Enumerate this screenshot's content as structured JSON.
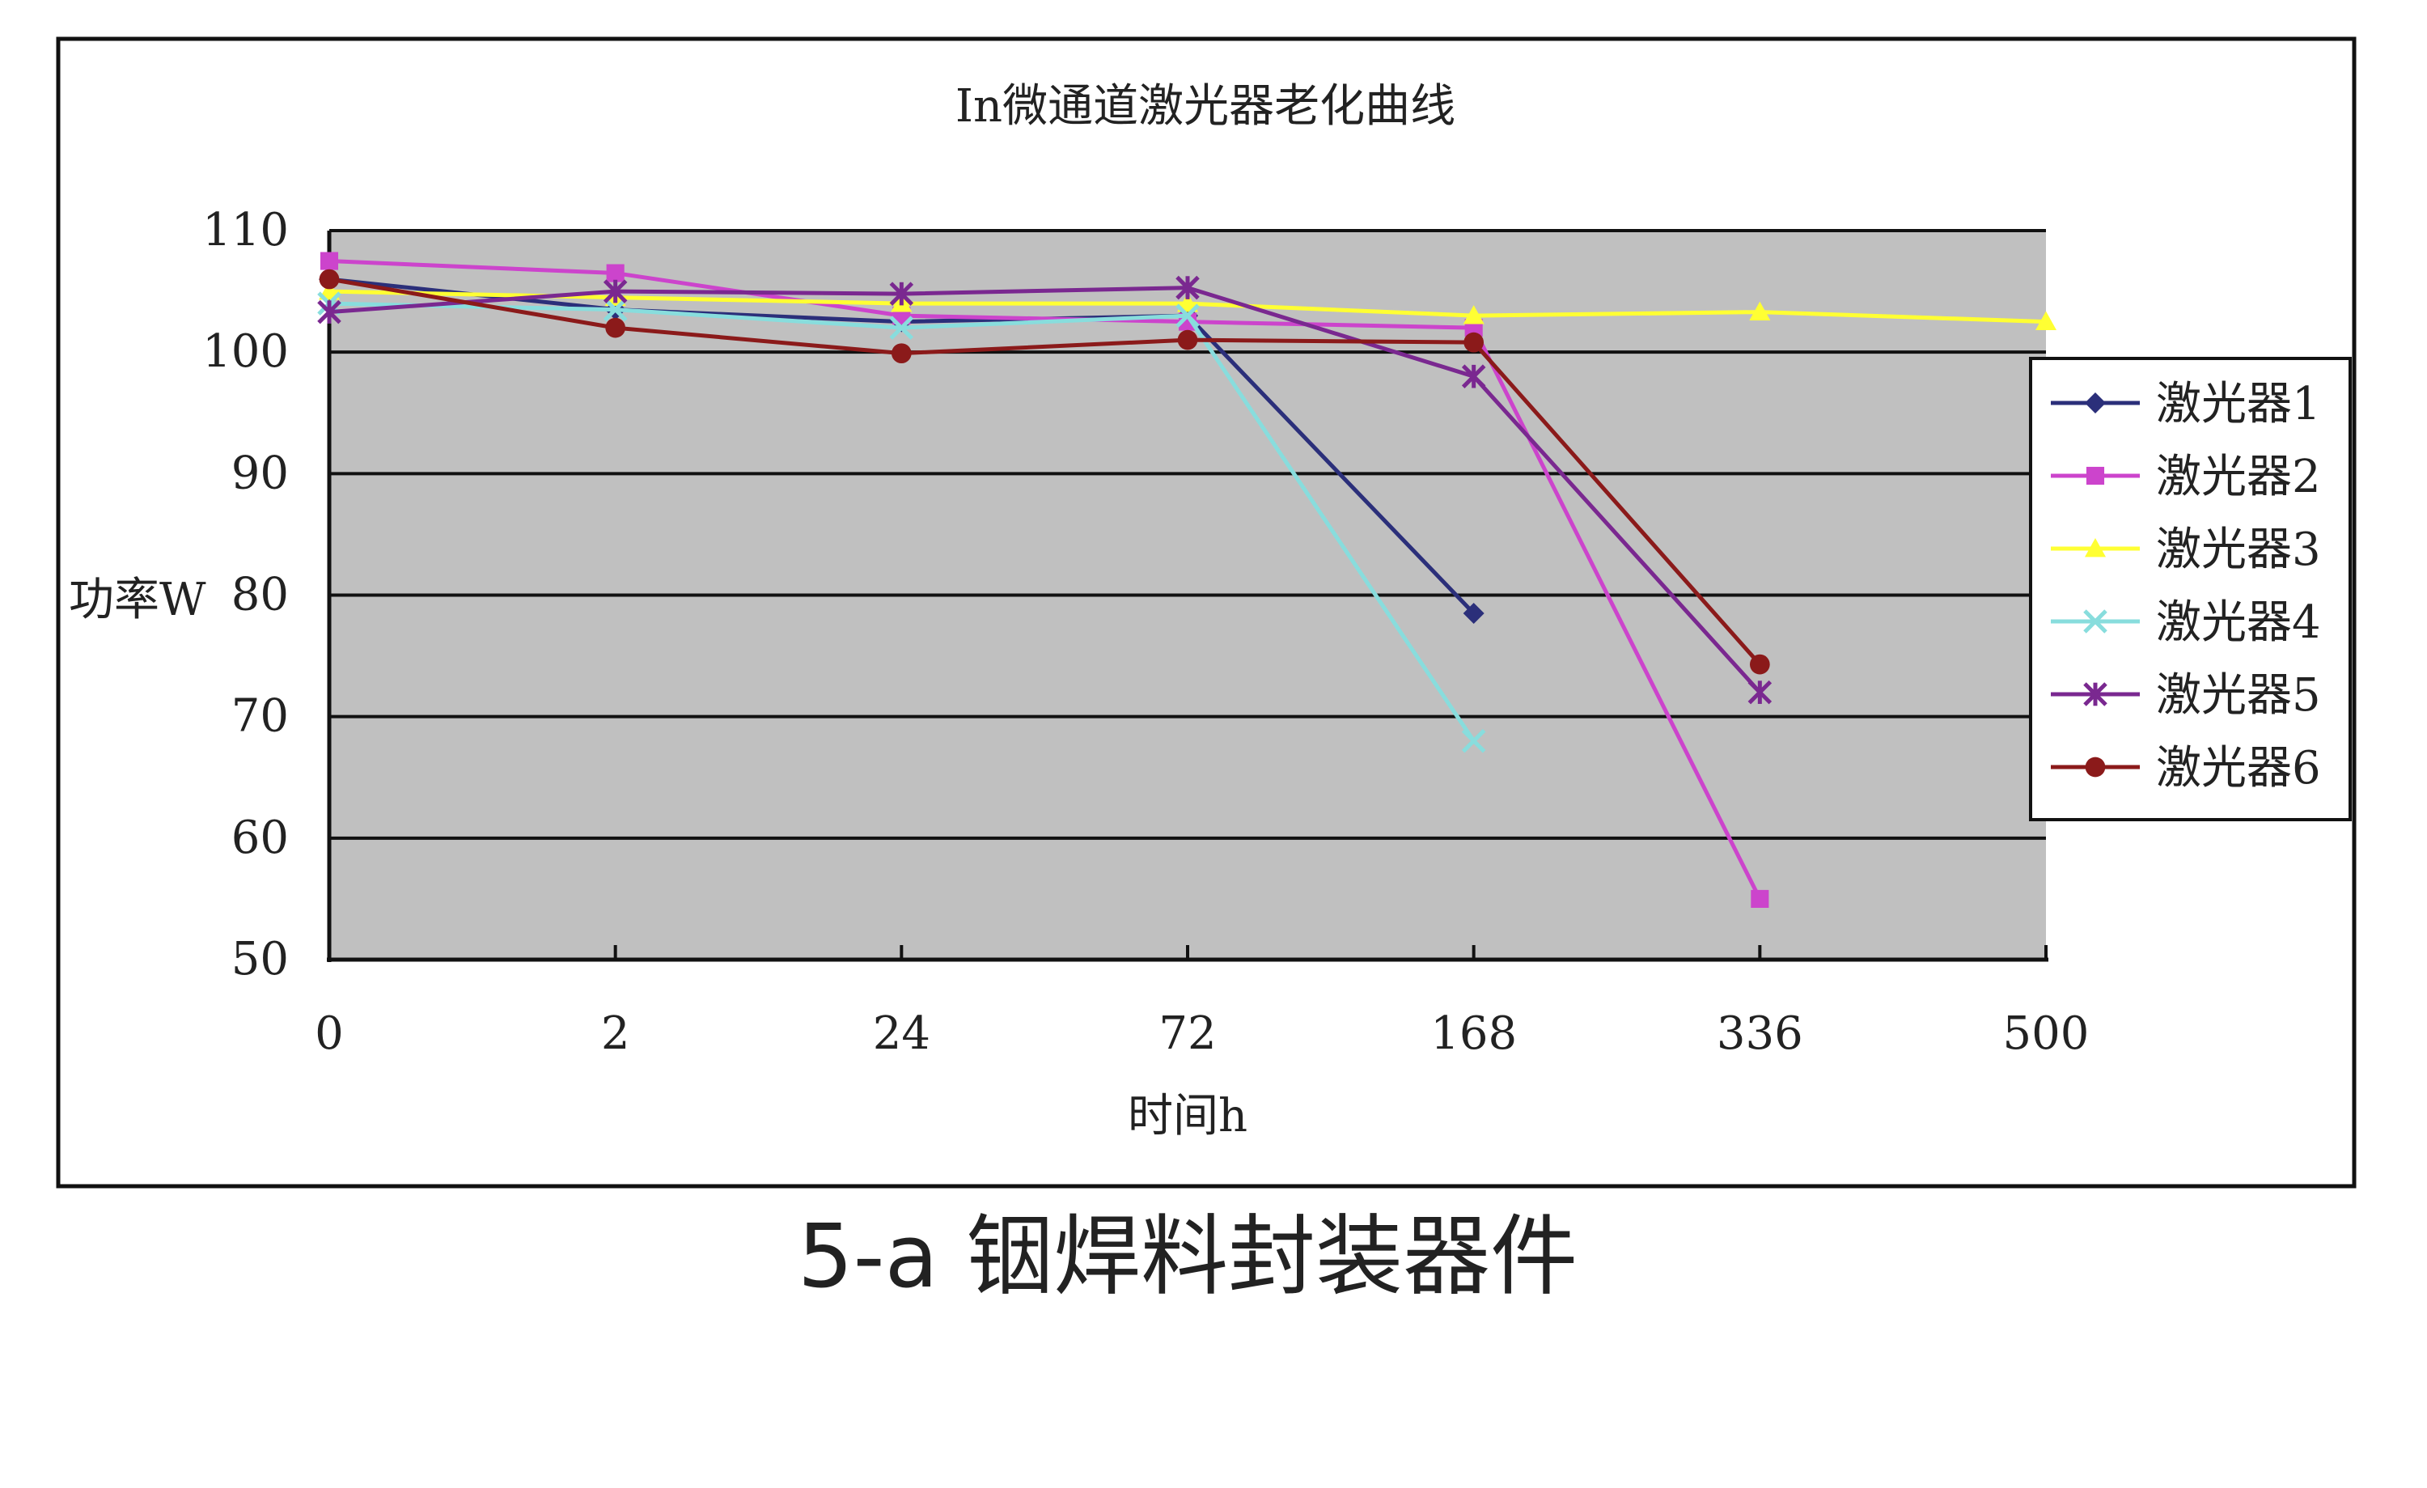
{
  "chart_data": {
    "type": "line",
    "title": "In微通道激光器老化曲线",
    "xlabel": "时间h",
    "ylabel": "功率W",
    "categories": [
      "0",
      "2",
      "24",
      "72",
      "168",
      "336",
      "500"
    ],
    "ylim": [
      50,
      110
    ],
    "yticks": [
      50,
      60,
      70,
      80,
      90,
      100,
      110
    ],
    "grid": true,
    "legend_position": "right",
    "series": [
      {
        "name": "激光器1",
        "color": "#2b2f7a",
        "marker": "diamond",
        "values": [
          106,
          103.5,
          102.5,
          103,
          78.5,
          null,
          null
        ]
      },
      {
        "name": "激光器2",
        "color": "#cc44cc",
        "marker": "square",
        "values": [
          107.5,
          106.5,
          103,
          102.5,
          102,
          55,
          null
        ]
      },
      {
        "name": "激光器3",
        "color": "#ffff33",
        "marker": "triangle",
        "values": [
          105,
          104.5,
          104,
          104,
          103,
          103.3,
          102.5
        ]
      },
      {
        "name": "激光器4",
        "color": "#88dddd",
        "marker": "x",
        "values": [
          104,
          103.5,
          102,
          103,
          68,
          null,
          null
        ]
      },
      {
        "name": "激光器5",
        "color": "#7a2890",
        "marker": "star",
        "values": [
          103.3,
          105,
          104.8,
          105.3,
          98,
          72,
          null
        ]
      },
      {
        "name": "激光器6",
        "color": "#8b1a1a",
        "marker": "circle",
        "values": [
          106,
          102,
          99.9,
          101,
          100.8,
          74.3,
          null
        ]
      }
    ]
  },
  "caption": "5-a 铟焊料封装器件"
}
